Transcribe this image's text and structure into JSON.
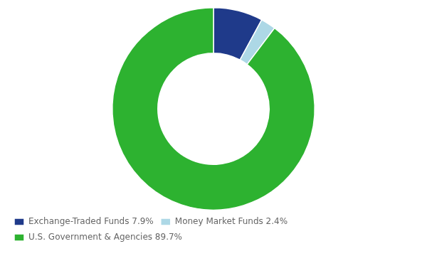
{
  "chart_data": {
    "type": "donut",
    "categories": [
      "Exchange-Traded Funds 7.9%",
      "Money Market Funds 2.4%",
      "U.S. Government & Agencies 89.7%"
    ],
    "values": [
      7.9,
      2.4,
      89.7
    ],
    "colors": [
      "#1f3a8a",
      "#add8e6",
      "#2db230"
    ],
    "legend": "lower left"
  }
}
